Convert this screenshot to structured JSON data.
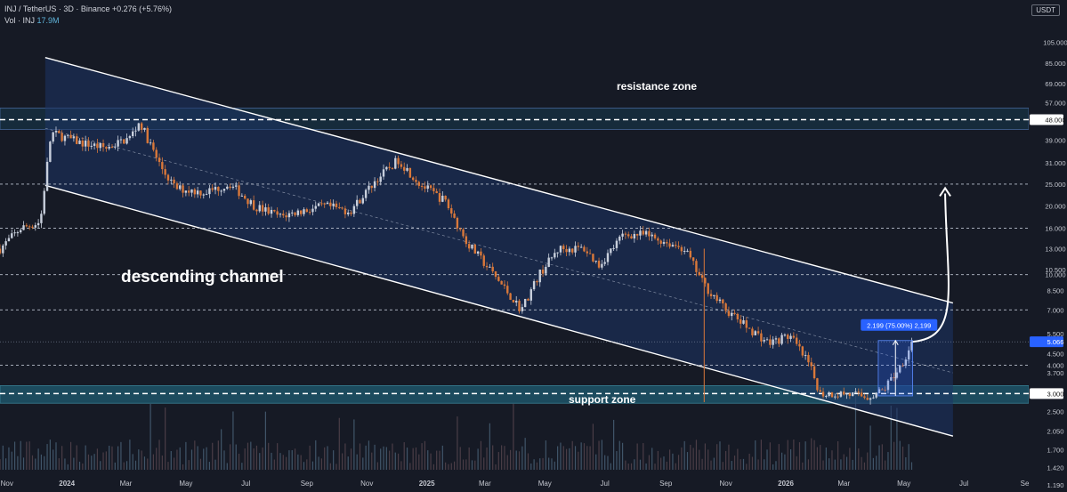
{
  "header": {
    "symbol_line": "INJ / TetherUS · 3D · Binance",
    "change": "+0.276 (+5.76%)",
    "volume_label": "Vol · INJ",
    "volume_value": "17.9M"
  },
  "price_unit": "USDT",
  "colors": {
    "background": "#161a25",
    "channel_fill": "#1e3566",
    "zone_fill": "#173a4e",
    "up_candle": "#c8cfdc",
    "down_candle": "#d9783a",
    "line": "#ffffff",
    "price_tag": "#2962ff"
  },
  "chart_data": {
    "type": "candlestick",
    "y_scale": "log",
    "ylim": [
      1.19,
      150
    ],
    "y_ticks": [
      "105.000",
      "85.000",
      "69.000",
      "57.000",
      "48.000",
      "39.000",
      "31.000",
      "25.000",
      "20.000",
      "16.000",
      "13.000",
      "10.500",
      "10.000",
      "8.500",
      "7.000",
      "5.500",
      "5.066",
      "4.500",
      "4.000",
      "3.700",
      "3.000",
      "2.500",
      "2.050",
      "1.700",
      "1.420",
      "1.190"
    ],
    "x_ticks": [
      "Nov",
      "2024",
      "Mar",
      "May",
      "Jul",
      "Sep",
      "Nov",
      "2025",
      "Mar",
      "May",
      "Jul",
      "Sep",
      "Nov",
      "2026",
      "Mar",
      "May",
      "Jul",
      "Se"
    ],
    "x_range": [
      "2023-10-25",
      "2026-09-05"
    ],
    "highlighted_ticks": [
      "48.000",
      "3.000"
    ],
    "last_price": "5.066",
    "annotations": {
      "channel_label": "descending channel",
      "resistance_label": "resistance zone",
      "support_label": "support zone",
      "measure_label": "2.199 (75.00%) 2,199"
    },
    "horizontal_levels": [
      {
        "price": 48,
        "style": "dashed"
      },
      {
        "price": 25,
        "style": "dashed"
      },
      {
        "price": 16,
        "style": "dashed"
      },
      {
        "price": 10,
        "style": "dashed"
      },
      {
        "price": 7,
        "style": "dashed"
      },
      {
        "price": 4,
        "style": "dashed"
      },
      {
        "price": 3,
        "style": "dashed"
      }
    ],
    "resistance_zone": {
      "low": 43.5,
      "high": 54
    },
    "support_zone": {
      "low": 2.72,
      "high": 3.25
    },
    "channel": {
      "upper_start": {
        "date": "2023-12-10",
        "price": 90
      },
      "upper_end": {
        "date": "2026-06-20",
        "price": 7.5
      },
      "lower_start": {
        "date": "2023-12-10",
        "price": 24.7
      },
      "lower_end": {
        "date": "2026-06-20",
        "price": 1.95
      },
      "mid_start": {
        "date": "2023-12-10",
        "price": 44
      },
      "mid_end": {
        "date": "2026-06-20",
        "price": 3.7
      }
    },
    "projection": {
      "from": {
        "date": "2026-05-10",
        "price": 5.07
      },
      "to": {
        "date": "2026-06-12",
        "price": 24
      }
    },
    "measure": {
      "start_date": "2026-04-05",
      "end_date": "2026-05-10",
      "low": 2.93,
      "high": 5.13
    },
    "price_path": [
      [
        "2023-10-25",
        13.0
      ],
      [
        "2023-11-15",
        16.0
      ],
      [
        "2023-12-05",
        17.0
      ],
      [
        "2023-12-10",
        26.0
      ],
      [
        "2023-12-16",
        42.0
      ],
      [
        "2024-01-15",
        38.0
      ],
      [
        "2024-02-10",
        36.0
      ],
      [
        "2024-03-05",
        40.0
      ],
      [
        "2024-03-15",
        47.0
      ],
      [
        "2024-04-05",
        30.0
      ],
      [
        "2024-04-20",
        24.0
      ],
      [
        "2024-05-20",
        23.0
      ],
      [
        "2024-06-15",
        25.0
      ],
      [
        "2024-07-10",
        20.0
      ],
      [
        "2024-08-05",
        18.0
      ],
      [
        "2024-08-25",
        19.0
      ],
      [
        "2024-09-20",
        20.0
      ],
      [
        "2024-10-15",
        19.0
      ],
      [
        "2024-11-10",
        26.0
      ],
      [
        "2024-12-03",
        32.0
      ],
      [
        "2024-12-25",
        25.0
      ],
      [
        "2025-01-20",
        21.0
      ],
      [
        "2025-02-10",
        14.0
      ],
      [
        "2025-03-10",
        10.0
      ],
      [
        "2025-04-07",
        7.0
      ],
      [
        "2025-04-25",
        10.0
      ],
      [
        "2025-05-15",
        13.0
      ],
      [
        "2025-06-10",
        13.0
      ],
      [
        "2025-06-25",
        11.0
      ],
      [
        "2025-07-20",
        15.0
      ],
      [
        "2025-08-10",
        15.0
      ],
      [
        "2025-08-30",
        14.0
      ],
      [
        "2025-09-20",
        13.0
      ],
      [
        "2025-10-10",
        9.0
      ],
      [
        "2025-11-01",
        7.0
      ],
      [
        "2025-11-20",
        6.0
      ],
      [
        "2025-12-15",
        5.0
      ],
      [
        "2026-01-05",
        5.4
      ],
      [
        "2026-01-25",
        4.0
      ],
      [
        "2026-02-05",
        3.0
      ],
      [
        "2026-03-01",
        3.0
      ],
      [
        "2026-03-25",
        2.9
      ],
      [
        "2026-04-10",
        3.1
      ],
      [
        "2026-04-28",
        4.0
      ],
      [
        "2026-05-10",
        5.07
      ]
    ]
  }
}
